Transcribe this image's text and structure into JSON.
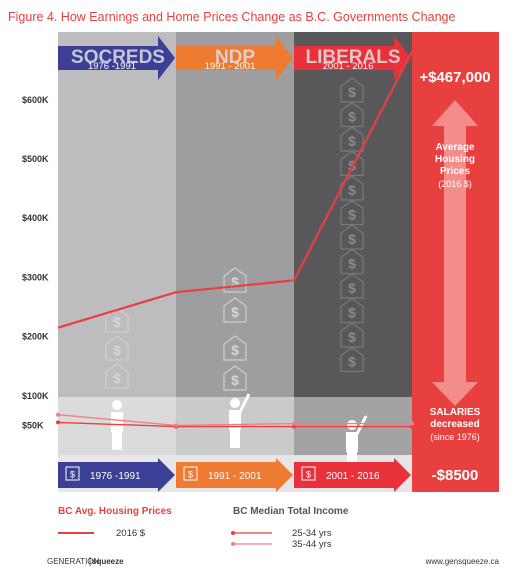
{
  "figure_title": "Figure 4.  How Earnings and Home Prices Change as B.C. Governments Change",
  "eras": [
    {
      "name": "SOCREDS",
      "range": "1976 -1991",
      "color": "#3b3f96"
    },
    {
      "name": "NDP",
      "range": "1991 - 2001",
      "color": "#ef7a31"
    },
    {
      "name": "LIBERALS",
      "range": "2001 - 2016",
      "color": "#e8313a"
    }
  ],
  "bottom_ranges": [
    "1976 -1991",
    "1991 - 2001",
    "2001 - 2016"
  ],
  "panel": {
    "housing_change": "+$467,000",
    "housing_label_lines": [
      "Average",
      "Housing",
      "Prices"
    ],
    "housing_unit": "(2016 $)",
    "salaries_line1": "SALARIES",
    "salaries_line2": "decreased",
    "salaries_since": "(since 1976)",
    "salary_change": "-$8500",
    "color": "#e8403f"
  },
  "icons": {
    "house": "house-dollar-icon",
    "person": "person-silhouette-icon",
    "arrow": "up-down-arrow-icon"
  },
  "legend": {
    "housing_title": "BC Avg. Housing Prices",
    "housing_item": "2016 $",
    "income_title": "BC Median Total Income",
    "income_items": [
      "25-34 yrs",
      "35-44 yrs"
    ]
  },
  "footer": {
    "brand_left": "GENERATION",
    "brand_right": "squeeze",
    "url": "www.gensqueeze.ca"
  },
  "chart_data": {
    "type": "line",
    "title": "Figure 4.  How Earnings and Home Prices Change as B.C. Governments Change",
    "x": [
      1976,
      1991,
      2001,
      2016
    ],
    "ylim": [
      0,
      650000
    ],
    "yticks": [
      50000,
      100000,
      200000,
      300000,
      400000,
      500000,
      600000
    ],
    "ytick_labels": [
      "$50K",
      "$100K",
      "$200K",
      "$300K",
      "$400K",
      "$500K",
      "$600K"
    ],
    "series": [
      {
        "name": "2016 $",
        "values": [
          215000,
          275000,
          295000,
          682000
        ],
        "color": "#e8403f"
      },
      {
        "name": "25-34 yrs",
        "values": [
          55000,
          48000,
          48000,
          48000
        ],
        "color": "#e8403f"
      },
      {
        "name": "35-44 yrs",
        "values": [
          68000,
          50000,
          53000,
          53000
        ],
        "color": "#f08080"
      }
    ]
  }
}
